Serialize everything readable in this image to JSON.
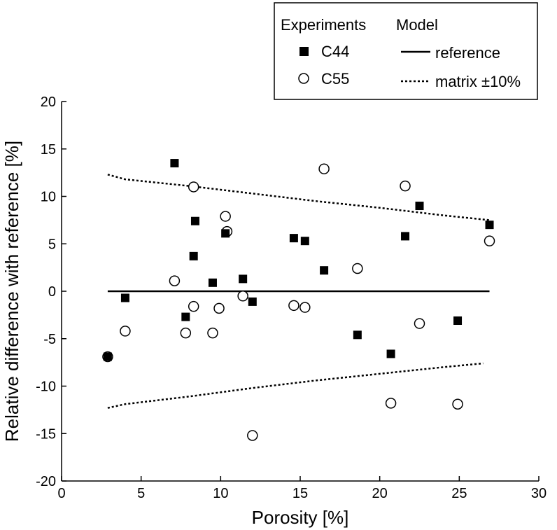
{
  "chart_data": {
    "type": "scatter",
    "xlabel": "Porosity [%]",
    "ylabel": "Relative difference with reference [%]",
    "xlim": [
      0,
      30
    ],
    "ylim": [
      -20,
      20
    ],
    "xticks": [
      0,
      5,
      10,
      15,
      20,
      25,
      30
    ],
    "yticks": [
      -20,
      -15,
      -10,
      -5,
      0,
      5,
      10,
      15,
      20
    ],
    "grid": false,
    "legend": {
      "placement": "top-right",
      "experiments_heading": "Experiments",
      "model_heading": "Model"
    },
    "series": [
      {
        "name": "C44",
        "marker": "filled-square",
        "color": "#000000",
        "points": [
          [
            2.9,
            -6.9
          ],
          [
            4.0,
            -0.7
          ],
          [
            7.1,
            13.5
          ],
          [
            7.8,
            -2.7
          ],
          [
            8.3,
            3.7
          ],
          [
            8.4,
            7.4
          ],
          [
            9.5,
            0.9
          ],
          [
            10.3,
            6.1
          ],
          [
            11.4,
            1.3
          ],
          [
            12.0,
            -1.1
          ],
          [
            14.6,
            5.6
          ],
          [
            15.3,
            5.3
          ],
          [
            16.5,
            2.2
          ],
          [
            18.6,
            -4.6
          ],
          [
            20.7,
            -6.6
          ],
          [
            21.6,
            5.8
          ],
          [
            22.5,
            9.0
          ],
          [
            24.9,
            -3.1
          ],
          [
            26.9,
            7.0
          ]
        ]
      },
      {
        "name": "C55",
        "marker": "open-circle",
        "color": "#000000",
        "points": [
          [
            2.9,
            -6.9
          ],
          [
            4.0,
            -4.2
          ],
          [
            7.1,
            1.1
          ],
          [
            7.8,
            -4.4
          ],
          [
            8.3,
            -1.6
          ],
          [
            8.3,
            11.0
          ],
          [
            9.5,
            -4.4
          ],
          [
            9.9,
            -1.8
          ],
          [
            10.3,
            7.9
          ],
          [
            10.4,
            6.3
          ],
          [
            11.4,
            -0.5
          ],
          [
            12.0,
            -15.2
          ],
          [
            14.6,
            -1.5
          ],
          [
            15.3,
            -1.7
          ],
          [
            16.5,
            12.9
          ],
          [
            18.6,
            2.4
          ],
          [
            20.7,
            -11.8
          ],
          [
            21.6,
            11.1
          ],
          [
            22.5,
            -3.4
          ],
          [
            24.9,
            -11.9
          ],
          [
            26.9,
            5.3
          ]
        ]
      },
      {
        "name": "reference",
        "line": "solid",
        "color": "#000000",
        "points": [
          [
            2.9,
            0
          ],
          [
            26.9,
            0
          ]
        ]
      },
      {
        "name": "matrix ±10%",
        "line": "dotted",
        "color": "#000000",
        "curves": [
          [
            [
              2.9,
              12.3
            ],
            [
              4.0,
              11.8
            ],
            [
              8.0,
              11.1
            ],
            [
              12.0,
              10.3
            ],
            [
              16.0,
              9.5
            ],
            [
              20.0,
              8.8
            ],
            [
              24.0,
              8.0
            ],
            [
              26.9,
              7.5
            ]
          ],
          [
            [
              2.9,
              -12.3
            ],
            [
              4.0,
              -11.9
            ],
            [
              8.0,
              -11.1
            ],
            [
              12.0,
              -10.2
            ],
            [
              16.0,
              -9.4
            ],
            [
              20.0,
              -8.7
            ],
            [
              24.0,
              -8.0
            ],
            [
              26.5,
              -7.6
            ]
          ]
        ]
      }
    ]
  }
}
